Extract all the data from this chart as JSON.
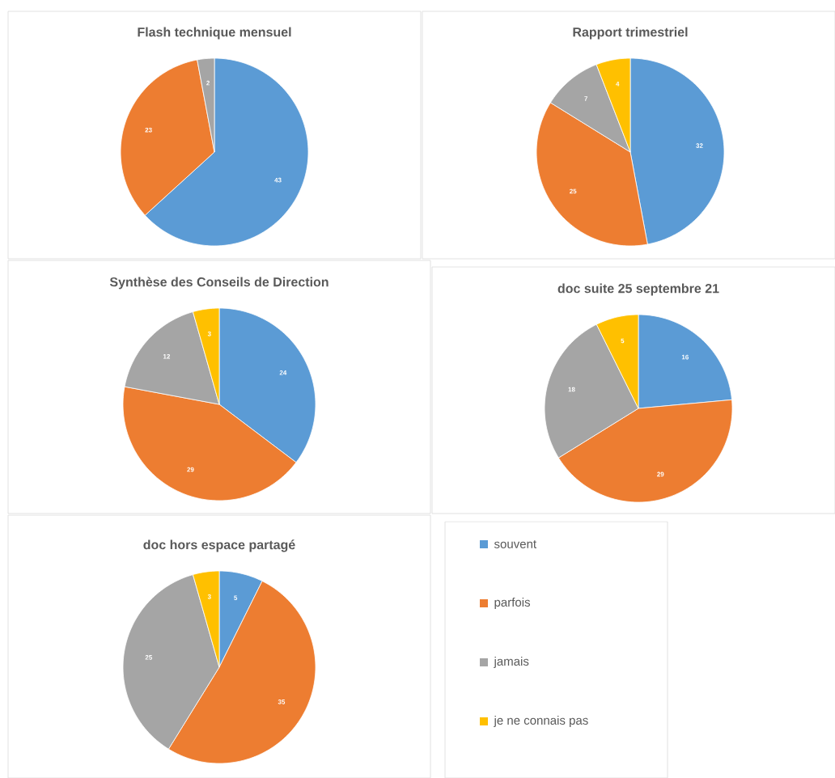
{
  "chart_data": [
    {
      "type": "pie",
      "title": "Flash technique mensuel",
      "values": [
        43,
        23,
        2
      ],
      "colors": [
        "#5b9bd5",
        "#ed7d31",
        "#a5a5a5"
      ],
      "data_labels": true
    },
    {
      "type": "pie",
      "title": "Rapport trimestriel",
      "values": [
        32,
        25,
        7,
        4
      ],
      "colors": [
        "#5b9bd5",
        "#ed7d31",
        "#a5a5a5",
        "#ffc000"
      ],
      "data_labels": true
    },
    {
      "type": "pie",
      "title": "Synthèse des Conseils de Direction",
      "values": [
        24,
        29,
        12,
        3
      ],
      "colors": [
        "#5b9bd5",
        "#ed7d31",
        "#a5a5a5",
        "#ffc000"
      ],
      "data_labels": true
    },
    {
      "type": "pie",
      "title": "doc suite 25 septembre 21",
      "values": [
        16,
        29,
        18,
        5
      ],
      "colors": [
        "#5b9bd5",
        "#ed7d31",
        "#a5a5a5",
        "#ffc000"
      ],
      "data_labels": true
    },
    {
      "type": "pie",
      "title": "doc hors espace partagé",
      "categories": [
        "souvent",
        "parfois",
        "jamais",
        "je ne connais pas"
      ],
      "values": [
        5,
        35,
        25,
        3
      ],
      "colors": [
        "#5b9bd5",
        "#ed7d31",
        "#a5a5a5",
        "#ffc000"
      ],
      "data_labels": true,
      "legend": "right"
    }
  ]
}
